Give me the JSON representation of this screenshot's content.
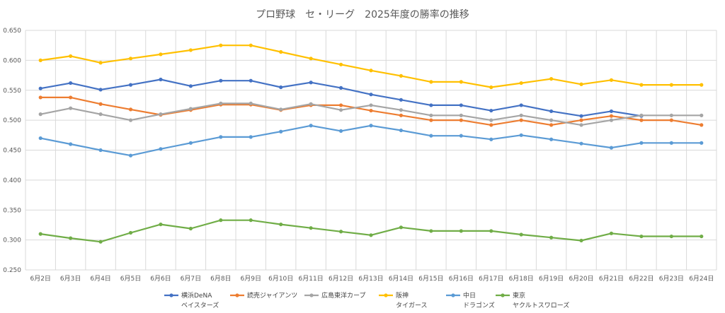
{
  "chart_data": {
    "type": "line",
    "title": "プロ野球　セ・リーグ　2025年度の勝率の推移",
    "xlabel": "",
    "ylabel": "",
    "ylim": [
      0.25,
      0.65
    ],
    "yticks": [
      "0.250",
      "0.300",
      "0.350",
      "0.400",
      "0.450",
      "0.500",
      "0.550",
      "0.600",
      "0.650"
    ],
    "grid": true,
    "legend_position": "bottom",
    "categories": [
      "6月2日",
      "6月3日",
      "6月4日",
      "6月5日",
      "6月6日",
      "6月7日",
      "6月8日",
      "6月9日",
      "6月10日",
      "6月11日",
      "6月12日",
      "6月13日",
      "6月14日",
      "6月15日",
      "6月16日",
      "6月17日",
      "6月18日",
      "6月19日",
      "6月20日",
      "6月21日",
      "6月22日",
      "6月23日",
      "6月24日"
    ],
    "series": [
      {
        "name": "横浜DeNA",
        "name2": "ベイスターズ",
        "color": "#4472C4",
        "values": [
          0.553,
          0.562,
          0.551,
          0.559,
          0.568,
          0.557,
          0.566,
          0.566,
          0.555,
          0.563,
          0.554,
          0.543,
          0.534,
          0.525,
          0.525,
          0.516,
          0.525,
          0.515,
          0.507,
          0.515,
          0.507,
          null,
          null
        ]
      },
      {
        "name": "読売ジャイアンツ",
        "name2": "",
        "color": "#ED7D31",
        "values": [
          0.538,
          0.538,
          0.527,
          0.518,
          0.509,
          0.517,
          0.526,
          0.526,
          0.517,
          0.525,
          0.525,
          0.516,
          0.508,
          0.5,
          0.5,
          0.492,
          0.5,
          0.492,
          0.5,
          0.507,
          0.5,
          0.5,
          0.492
        ]
      },
      {
        "name": "広島東洋カープ",
        "name2": "",
        "color": "#A5A5A5",
        "values": [
          0.51,
          0.52,
          0.51,
          0.5,
          0.51,
          0.519,
          0.528,
          0.528,
          0.518,
          0.527,
          0.517,
          0.525,
          0.517,
          0.508,
          0.508,
          0.5,
          0.508,
          0.5,
          0.492,
          0.5,
          0.508,
          0.508,
          0.508
        ]
      },
      {
        "name": "阪神",
        "name2": "タイガース",
        "color": "#FFC000",
        "values": [
          0.6,
          0.607,
          0.596,
          0.603,
          0.61,
          0.617,
          0.625,
          0.625,
          0.614,
          0.603,
          0.593,
          0.583,
          0.574,
          0.564,
          0.564,
          0.555,
          0.562,
          0.569,
          0.56,
          0.567,
          0.559,
          0.559,
          0.559
        ]
      },
      {
        "name": "中日",
        "name2": "ドラゴンズ",
        "color": "#5B9BD5",
        "values": [
          0.47,
          0.46,
          0.45,
          0.441,
          0.452,
          0.462,
          0.472,
          0.472,
          0.481,
          0.491,
          0.482,
          0.491,
          0.483,
          0.474,
          0.474,
          0.468,
          0.475,
          0.468,
          0.461,
          0.454,
          0.462,
          0.462,
          0.462
        ]
      },
      {
        "name": "東京",
        "name2": "ヤクルトスワローズ",
        "color": "#70AD47",
        "values": [
          0.31,
          0.303,
          0.297,
          0.312,
          0.326,
          0.319,
          0.333,
          0.333,
          0.326,
          0.32,
          0.314,
          0.308,
          0.321,
          0.315,
          0.315,
          0.315,
          0.309,
          0.304,
          0.299,
          0.311,
          0.306,
          0.306,
          0.306
        ]
      }
    ]
  }
}
